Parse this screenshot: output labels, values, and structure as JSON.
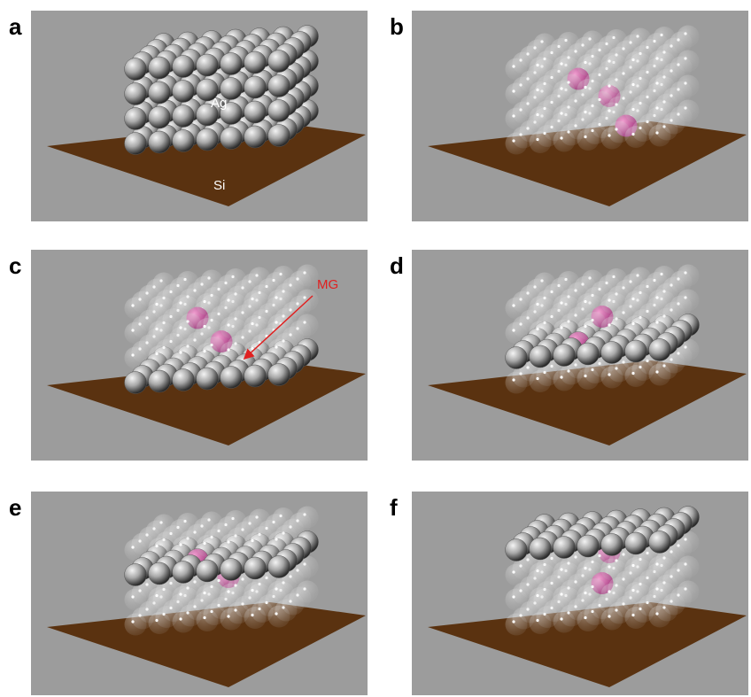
{
  "panels": [
    {
      "label": "a",
      "annotations": [
        "Ag",
        "Si"
      ]
    },
    {
      "label": "b"
    },
    {
      "label": "c",
      "annotations": [
        "MG"
      ]
    },
    {
      "label": "d"
    },
    {
      "label": "e"
    },
    {
      "label": "f"
    }
  ]
}
